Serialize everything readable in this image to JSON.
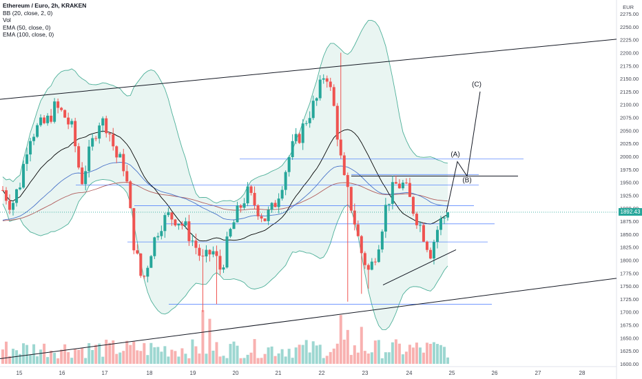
{
  "legend": {
    "symbol": "Ethereum / Euro, 2h, KRAKEN",
    "indicators": [
      "BB (20, close, 2, 0)",
      "Vol",
      "EMA (50, close, 0)",
      "EMA (100, close, 0)"
    ]
  },
  "price_axis": {
    "unit": "EUR",
    "ticks": [
      "2275.00",
      "2250.00",
      "2225.00",
      "2200.00",
      "2175.00",
      "2150.00",
      "2125.00",
      "2100.00",
      "2075.00",
      "2050.00",
      "2025.00",
      "2000.00",
      "1975.00",
      "1950.00",
      "1925.00",
      "1900.00",
      "1875.00",
      "1850.00",
      "1825.00",
      "1800.00",
      "1775.00",
      "1750.00",
      "1725.00",
      "1700.00",
      "1675.00",
      "1650.00",
      "1625.00",
      "1600.00"
    ],
    "current_price": "1892.43",
    "current_color": "#26a69a"
  },
  "time_axis": {
    "labels": [
      "15",
      "16",
      "17",
      "18",
      "19",
      "20",
      "21",
      "22",
      "23",
      "24",
      "25",
      "26",
      "27",
      "28"
    ]
  },
  "wave_labels": [
    "(A)",
    "(B)",
    "(C)"
  ],
  "colors": {
    "up": "#26a69a",
    "down": "#ef5350",
    "bb_band": "#4caf98",
    "bb_fill": "#e9f5f2",
    "bb_basis": "#000000",
    "ema50": "#4a74c9",
    "ema100": "#b05a5a",
    "levels": "#2962ff"
  },
  "chart_data": {
    "type": "candlestick",
    "title": "Ethereum / Euro, 2h, KRAKEN",
    "xlabel": "",
    "ylabel": "EUR",
    "ylim": [
      1600,
      2275
    ],
    "x_ticks": [
      "15",
      "16",
      "17",
      "18",
      "19",
      "20",
      "21",
      "22",
      "23",
      "24",
      "25",
      "26",
      "27",
      "28"
    ],
    "last_price": 1892.43,
    "horizontal_levels": [
      1995,
      1965,
      1945,
      1905,
      1870,
      1835,
      1715
    ],
    "trendlines": [
      {
        "from": [
          "14.5",
          2110
        ],
        "to": [
          "28.8",
          2225
        ]
      },
      {
        "from": [
          "14.5",
          1610
        ],
        "to": [
          "28.8",
          1765
        ]
      }
    ],
    "wave_projection": [
      {
        "label": "(A)",
        "price": 1990
      },
      {
        "label": "(B)",
        "price": 1960
      },
      {
        "label": "(C)",
        "price": 2125
      }
    ],
    "candles_close_path": [
      1935,
      1905,
      1950,
      2040,
      2055,
      2065,
      2095,
      2080,
      2050,
      1950,
      2010,
      2070,
      2060,
      2000,
      1980,
      1835,
      1755,
      1820,
      1870,
      1885,
      1880,
      1860,
      1830,
      1795,
      1820,
      1780,
      1850,
      1895,
      1930,
      1905,
      1880,
      1900,
      1950,
      2010,
      2040,
      2080,
      2110,
      2170,
      2090,
      1960,
      1900,
      1820,
      1775,
      1830,
      1910,
      1945,
      1945,
      1900,
      1860,
      1815,
      1870,
      1892
    ]
  }
}
